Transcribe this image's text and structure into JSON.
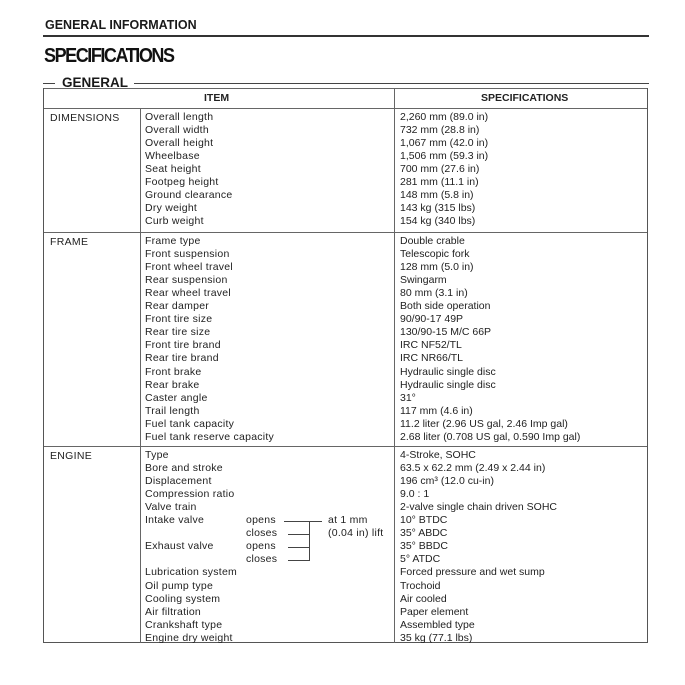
{
  "header": "GENERAL INFORMATION",
  "title": "SPECIFICATIONS",
  "section": "GENERAL",
  "columns": {
    "item": "ITEM",
    "spec": "SPECIFICATIONS"
  },
  "groups": [
    {
      "category": "DIMENSIONS",
      "rows": [
        {
          "item": "Overall length",
          "spec": "2,260 mm (89.0 in)"
        },
        {
          "item": "Overall width",
          "spec": "732 mm (28.8 in)"
        },
        {
          "item": "Overall height",
          "spec": "1,067 mm (42.0 in)"
        },
        {
          "item": "Wheelbase",
          "spec": "1,506 mm (59.3 in)"
        },
        {
          "item": "Seat height",
          "spec": "700 mm (27.6 in)"
        },
        {
          "item": "Footpeg height",
          "spec": "281 mm (11.1 in)"
        },
        {
          "item": "Ground clearance",
          "spec": "148 mm (5.8 in)"
        },
        {
          "item": "Dry weight",
          "spec": "143 kg (315 lbs)"
        },
        {
          "item": "Curb weight",
          "spec": "154 kg (340 lbs)"
        }
      ]
    },
    {
      "category": "FRAME",
      "rows": [
        {
          "item": "Frame type",
          "spec": "Double crable"
        },
        {
          "item": "Front suspension",
          "spec": "Telescopic fork"
        },
        {
          "item": "Front wheel travel",
          "spec": "128 mm (5.0 in)"
        },
        {
          "item": "Rear suspension",
          "spec": "Swingarm"
        },
        {
          "item": "Rear wheel travel",
          "spec": "80 mm (3.1 in)"
        },
        {
          "item": "Rear damper",
          "spec": "Both side operation"
        },
        {
          "item": "Front tire size",
          "spec": "90/90-17 49P"
        },
        {
          "item": "Rear tire size",
          "spec": "130/90-15 M/C 66P"
        },
        {
          "item": "Front tire brand",
          "spec": "IRC NF52/TL"
        },
        {
          "item": "Rear tire brand",
          "spec": "IRC NR66/TL"
        },
        {
          "item": "Front brake",
          "spec": "Hydraulic single disc"
        },
        {
          "item": "Rear brake",
          "spec": "Hydraulic single disc"
        },
        {
          "item": "Caster angle",
          "spec": "31°"
        },
        {
          "item": "Trail length",
          "spec": "117 mm (4.6 in)"
        },
        {
          "item": "Fuel tank capacity",
          "spec": "11.2 liter (2.96 US gal, 2.46 Imp gal)"
        },
        {
          "item": "Fuel tank reserve capacity",
          "spec": "2.68 liter (0.708 US gal, 0.590 Imp gal)"
        }
      ]
    },
    {
      "category": "ENGINE",
      "rows": [
        {
          "item": "Type",
          "spec": "4-Stroke, SOHC"
        },
        {
          "item": "Bore and stroke",
          "spec": "63.5 x 62.2 mm (2.49 x 2.44 in)"
        },
        {
          "item": "Displacement",
          "spec": "196 cm³ (12.0 cu-in)"
        },
        {
          "item": "Compression ratio",
          "spec": "9.0 : 1"
        },
        {
          "item": "Valve train",
          "spec": "2-valve single chain driven SOHC"
        },
        {
          "item": "Intake valve",
          "sub": "opens",
          "note": "at 1 mm",
          "spec": "10° BTDC"
        },
        {
          "item": "",
          "sub": "closes",
          "note": "(0.04 in) lift",
          "spec": "35° ABDC"
        },
        {
          "item": "Exhaust valve",
          "sub": "opens",
          "spec": "35° BBDC"
        },
        {
          "item": "",
          "sub": "closes",
          "spec": "5° ATDC"
        },
        {
          "item": "Lubrication system",
          "spec": "Forced pressure and wet sump"
        },
        {
          "item": "Oil pump type",
          "spec": "Trochoid"
        },
        {
          "item": "Cooling system",
          "spec": "Air cooled"
        },
        {
          "item": "Air filtration",
          "spec": "Paper element"
        },
        {
          "item": "Crankshaft type",
          "spec": "Assembled type"
        },
        {
          "item": "Engine dry weight",
          "spec": "35 kg (77.1 lbs)"
        }
      ]
    }
  ]
}
